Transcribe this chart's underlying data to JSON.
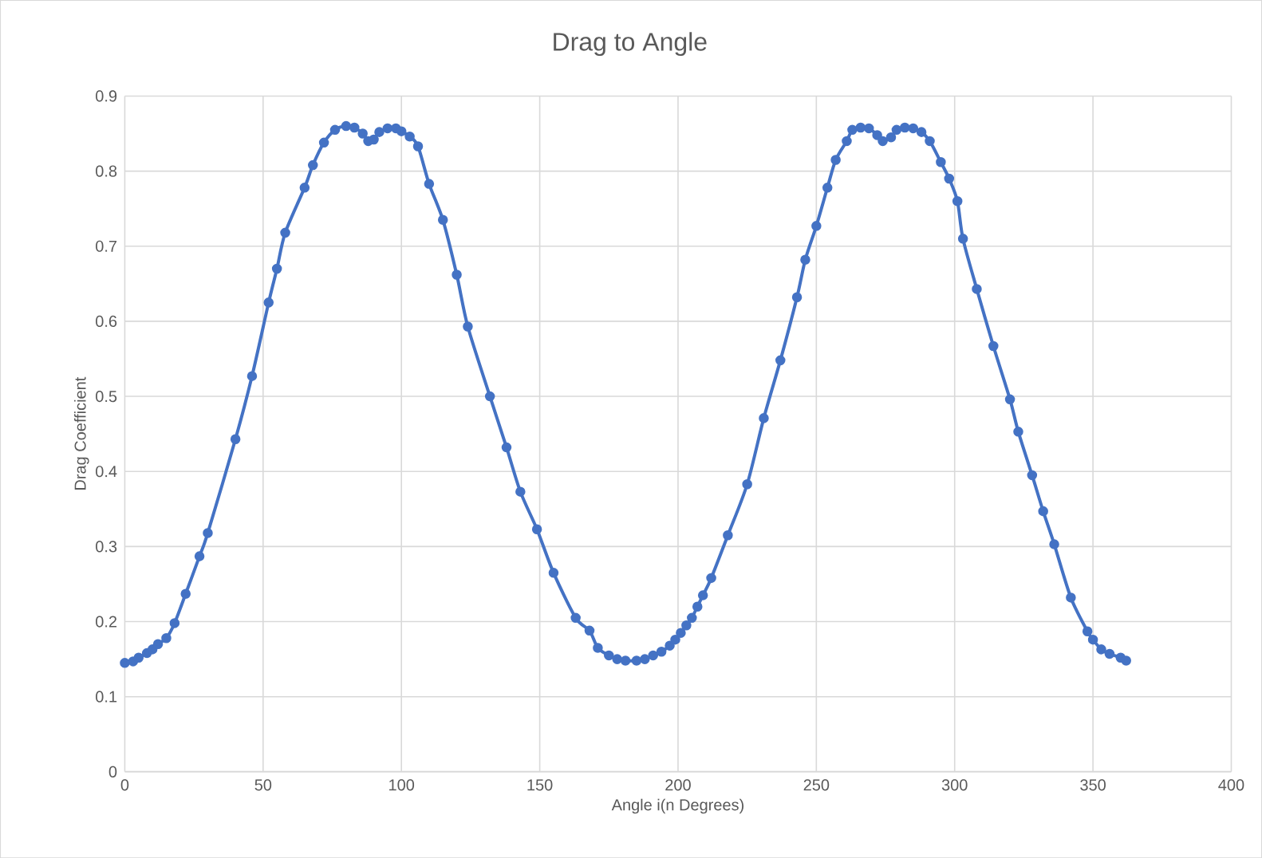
{
  "chart_data": {
    "type": "line",
    "title": "Drag to Angle",
    "xlabel": "Angle i(n Degrees)",
    "ylabel": "Drag Coefficient",
    "x": [
      0,
      3,
      5,
      8,
      10,
      12,
      15,
      18,
      22,
      27,
      30,
      40,
      46,
      52,
      55,
      58,
      65,
      68,
      72,
      76,
      80,
      83,
      86,
      88,
      90,
      92,
      95,
      98,
      100,
      103,
      106,
      110,
      115,
      120,
      124,
      132,
      138,
      143,
      149,
      155,
      163,
      168,
      171,
      175,
      178,
      181,
      185,
      188,
      191,
      194,
      197,
      199,
      201,
      203,
      205,
      207,
      209,
      212,
      218,
      225,
      231,
      237,
      243,
      246,
      250,
      254,
      257,
      261,
      263,
      266,
      269,
      272,
      274,
      277,
      279,
      282,
      285,
      288,
      291,
      295,
      298,
      301,
      303,
      308,
      314,
      320,
      323,
      328,
      332,
      336,
      342,
      348,
      350,
      353,
      356,
      360,
      362
    ],
    "values": [
      0.145,
      0.147,
      0.152,
      0.158,
      0.163,
      0.17,
      0.178,
      0.198,
      0.237,
      0.287,
      0.318,
      0.443,
      0.527,
      0.625,
      0.67,
      0.718,
      0.778,
      0.808,
      0.838,
      0.855,
      0.86,
      0.858,
      0.85,
      0.84,
      0.842,
      0.852,
      0.857,
      0.857,
      0.853,
      0.846,
      0.833,
      0.783,
      0.735,
      0.662,
      0.593,
      0.5,
      0.432,
      0.373,
      0.323,
      0.265,
      0.205,
      0.188,
      0.165,
      0.155,
      0.15,
      0.148,
      0.148,
      0.15,
      0.155,
      0.16,
      0.168,
      0.176,
      0.185,
      0.195,
      0.205,
      0.22,
      0.235,
      0.258,
      0.315,
      0.383,
      0.471,
      0.548,
      0.632,
      0.682,
      0.727,
      0.778,
      0.815,
      0.84,
      0.855,
      0.858,
      0.857,
      0.848,
      0.84,
      0.845,
      0.855,
      0.858,
      0.857,
      0.852,
      0.84,
      0.812,
      0.79,
      0.76,
      0.71,
      0.643,
      0.567,
      0.496,
      0.453,
      0.395,
      0.347,
      0.303,
      0.232,
      0.187,
      0.176,
      0.163,
      0.157,
      0.152,
      0.148
    ],
    "color": "#4472c4",
    "marker": "circle",
    "line_style": "solid",
    "xlim": [
      0,
      400
    ],
    "ylim": [
      0,
      0.9
    ],
    "xticks": [
      0,
      50,
      100,
      150,
      200,
      250,
      300,
      350,
      400
    ],
    "yticks": [
      0,
      0.1,
      0.2,
      0.3,
      0.4,
      0.5,
      0.6,
      0.7,
      0.8,
      0.9
    ],
    "grid": true
  }
}
